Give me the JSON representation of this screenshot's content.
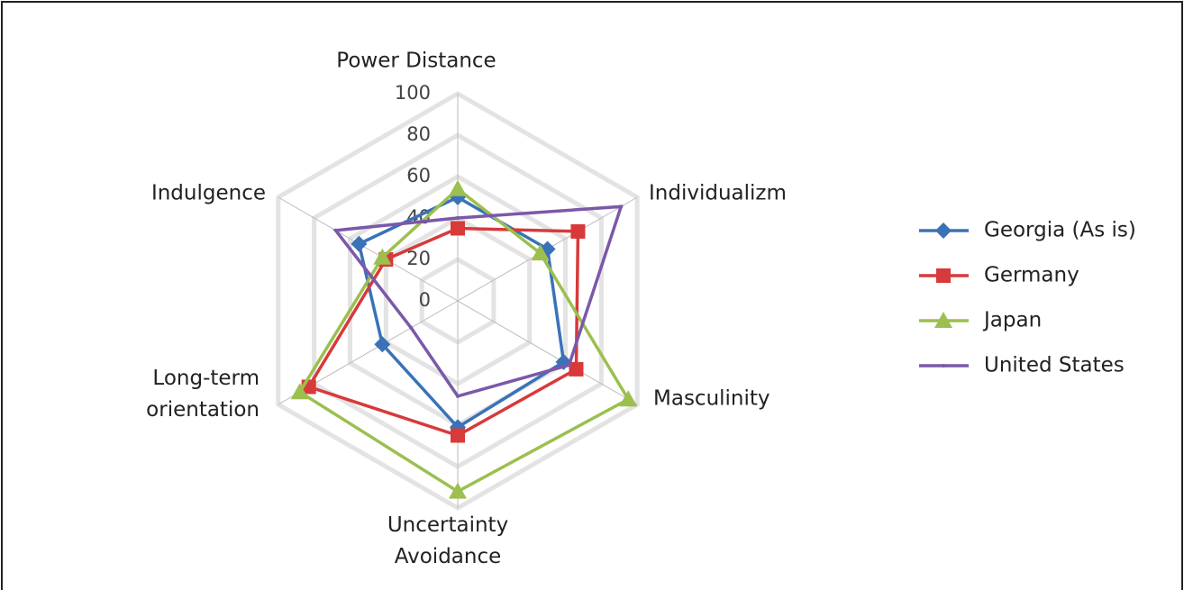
{
  "chart_data": {
    "type": "radar",
    "categories": [
      "Power Distance",
      "Individualizm",
      "Masculinity",
      "Uncertainty Avoidance",
      "Long-term orientation",
      "Indulgence"
    ],
    "series": [
      {
        "name": "Georgia (As is)",
        "color": "#3a72b8",
        "marker": "diamond",
        "values": [
          50,
          50,
          59,
          61,
          42,
          55
        ]
      },
      {
        "name": "Germany",
        "color": "#d8393a",
        "marker": "square",
        "values": [
          35,
          67,
          66,
          65,
          83,
          40
        ]
      },
      {
        "name": "Japan",
        "color": "#9cbf4f",
        "marker": "triangle",
        "values": [
          54,
          46,
          95,
          92,
          88,
          42
        ]
      },
      {
        "name": "United States",
        "color": "#7b58a8",
        "marker": "none",
        "values": [
          40,
          91,
          62,
          46,
          26,
          68
        ]
      }
    ],
    "ylim": [
      0,
      100
    ],
    "yticks": [
      0,
      20,
      40,
      60,
      80,
      100
    ],
    "grid": true,
    "legend": "right"
  }
}
